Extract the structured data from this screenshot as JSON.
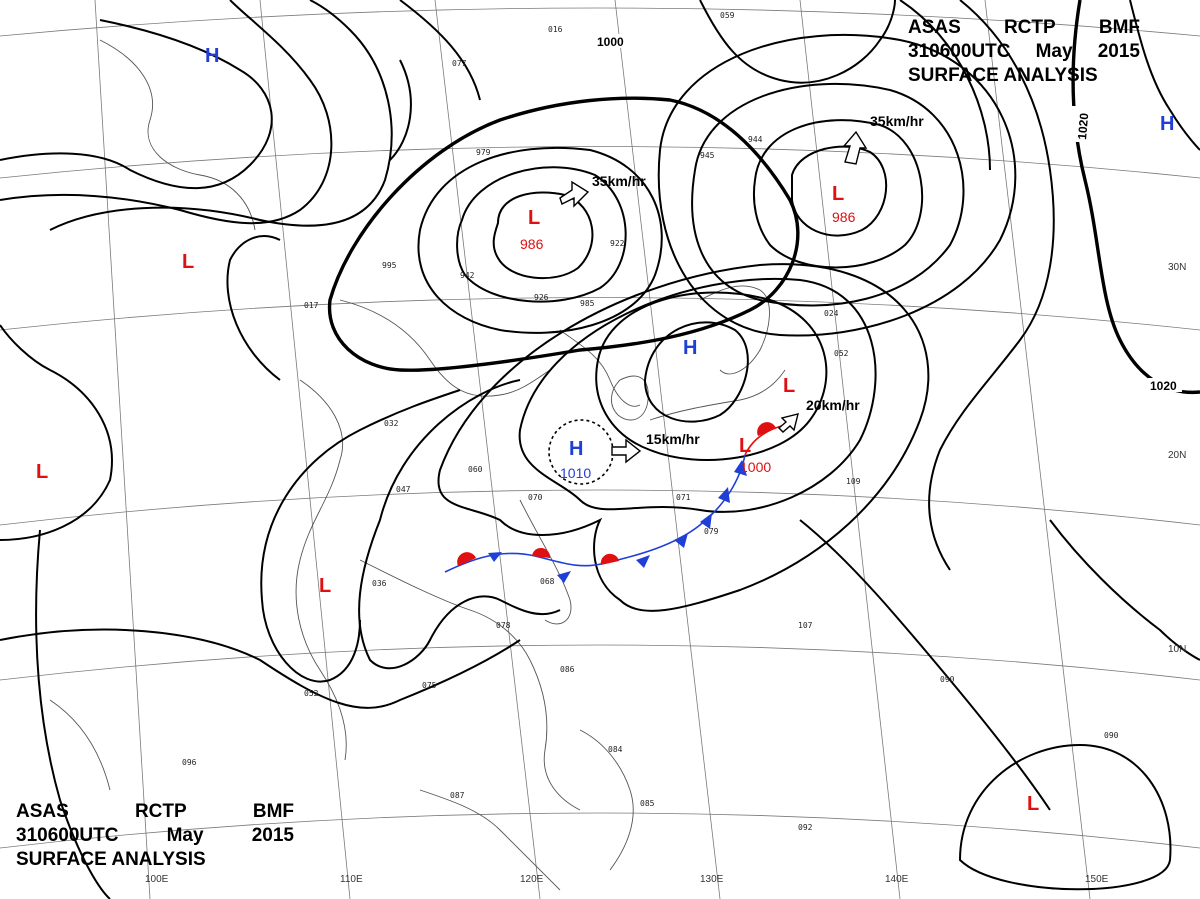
{
  "header": {
    "center": "ASAS",
    "origin": "RCTP",
    "agency": "BMF",
    "datetime": "310600UTC",
    "month": "May",
    "year": "2015",
    "product": "SURFACE ANALYSIS"
  },
  "longitude_labels": [
    "100E",
    "110E",
    "120E",
    "130E",
    "140E",
    "150E"
  ],
  "latitude_labels": [
    "30N",
    "20N",
    "10N"
  ],
  "isobar_labels": [
    "1000",
    "1020",
    "1020"
  ],
  "pressure_systems": [
    {
      "type": "H",
      "color": "#1f3fd6"
    },
    {
      "type": "H",
      "color": "#1f3fd6"
    },
    {
      "type": "H",
      "color": "#1f3fd6"
    },
    {
      "type": "H",
      "color": "#1f3fd6",
      "pressure": "1010"
    },
    {
      "type": "L",
      "color": "#e01010",
      "pressure": "986"
    },
    {
      "type": "L",
      "color": "#e01010",
      "pressure": "986"
    },
    {
      "type": "L",
      "color": "#e01010"
    },
    {
      "type": "L",
      "color": "#e01010",
      "pressure": "1000"
    },
    {
      "type": "L",
      "color": "#e01010"
    },
    {
      "type": "L",
      "color": "#e01010"
    },
    {
      "type": "L",
      "color": "#e01010"
    },
    {
      "type": "L",
      "color": "#e01010"
    }
  ],
  "motion_labels": [
    "35km/hr",
    "35km/hr",
    "15km/hr",
    "20km/hr"
  ],
  "station_readings": [
    "016",
    "059",
    "077",
    "979",
    "945",
    "944",
    "995",
    "942",
    "926",
    "985",
    "922",
    "017",
    "032",
    "060",
    "070",
    "047",
    "036",
    "068",
    "078",
    "075",
    "052",
    "096",
    "087",
    "090",
    "086",
    "092",
    "107",
    "109",
    "024",
    "052",
    "071",
    "079",
    "084",
    "085",
    "090"
  ]
}
